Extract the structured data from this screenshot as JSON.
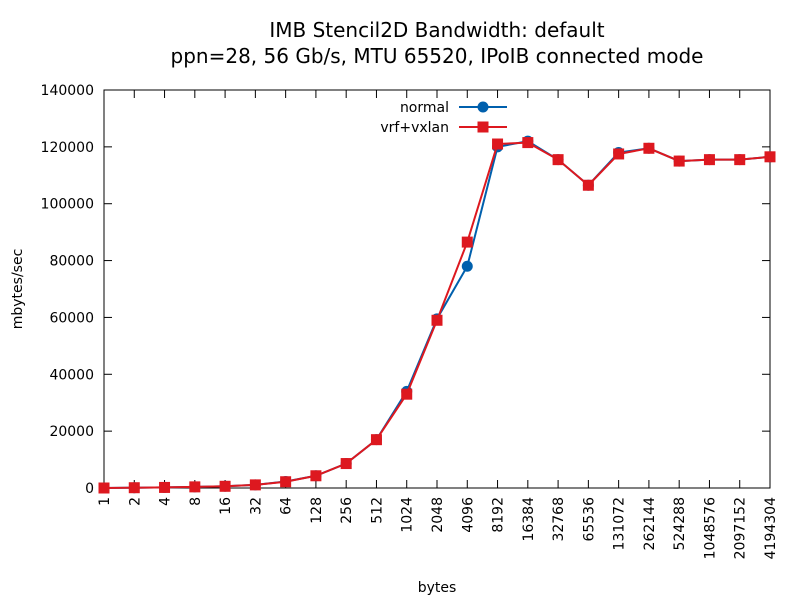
{
  "chart_data": {
    "type": "line",
    "title": "IMB Stencil2D Bandwidth: default",
    "subtitle": "ppn=28, 56 Gb/s, MTU 65520, IPoIB connected mode",
    "xlabel": "bytes",
    "ylabel": "mbytes/sec",
    "ylim": [
      0,
      140000
    ],
    "yticks": [
      "0",
      "20000",
      "40000",
      "60000",
      "80000",
      "100000",
      "120000",
      "140000"
    ],
    "categories": [
      "1",
      "2",
      "4",
      "8",
      "16",
      "32",
      "64",
      "128",
      "256",
      "512",
      "1024",
      "2048",
      "4096",
      "8192",
      "16384",
      "32768",
      "65536",
      "131072",
      "262144",
      "524288",
      "1048576",
      "2097152",
      "4194304"
    ],
    "legend_position": "top-center",
    "grid": false,
    "series": [
      {
        "name": "normal",
        "color": "#0060ad",
        "marker": "circle",
        "values": [
          0,
          100,
          200,
          400,
          600,
          1100,
          2300,
          4300,
          8600,
          17000,
          34000,
          59500,
          78000,
          120000,
          122000,
          115500,
          106500,
          118000,
          119500,
          115000,
          115500,
          115500,
          116500
        ]
      },
      {
        "name": "vrf+vxlan",
        "color": "#dd181f",
        "marker": "square",
        "values": [
          0,
          100,
          200,
          400,
          600,
          1100,
          2200,
          4300,
          8600,
          17000,
          33000,
          59000,
          86500,
          121000,
          121500,
          115500,
          106500,
          117500,
          119500,
          115000,
          115500,
          115500,
          116500
        ]
      }
    ]
  }
}
